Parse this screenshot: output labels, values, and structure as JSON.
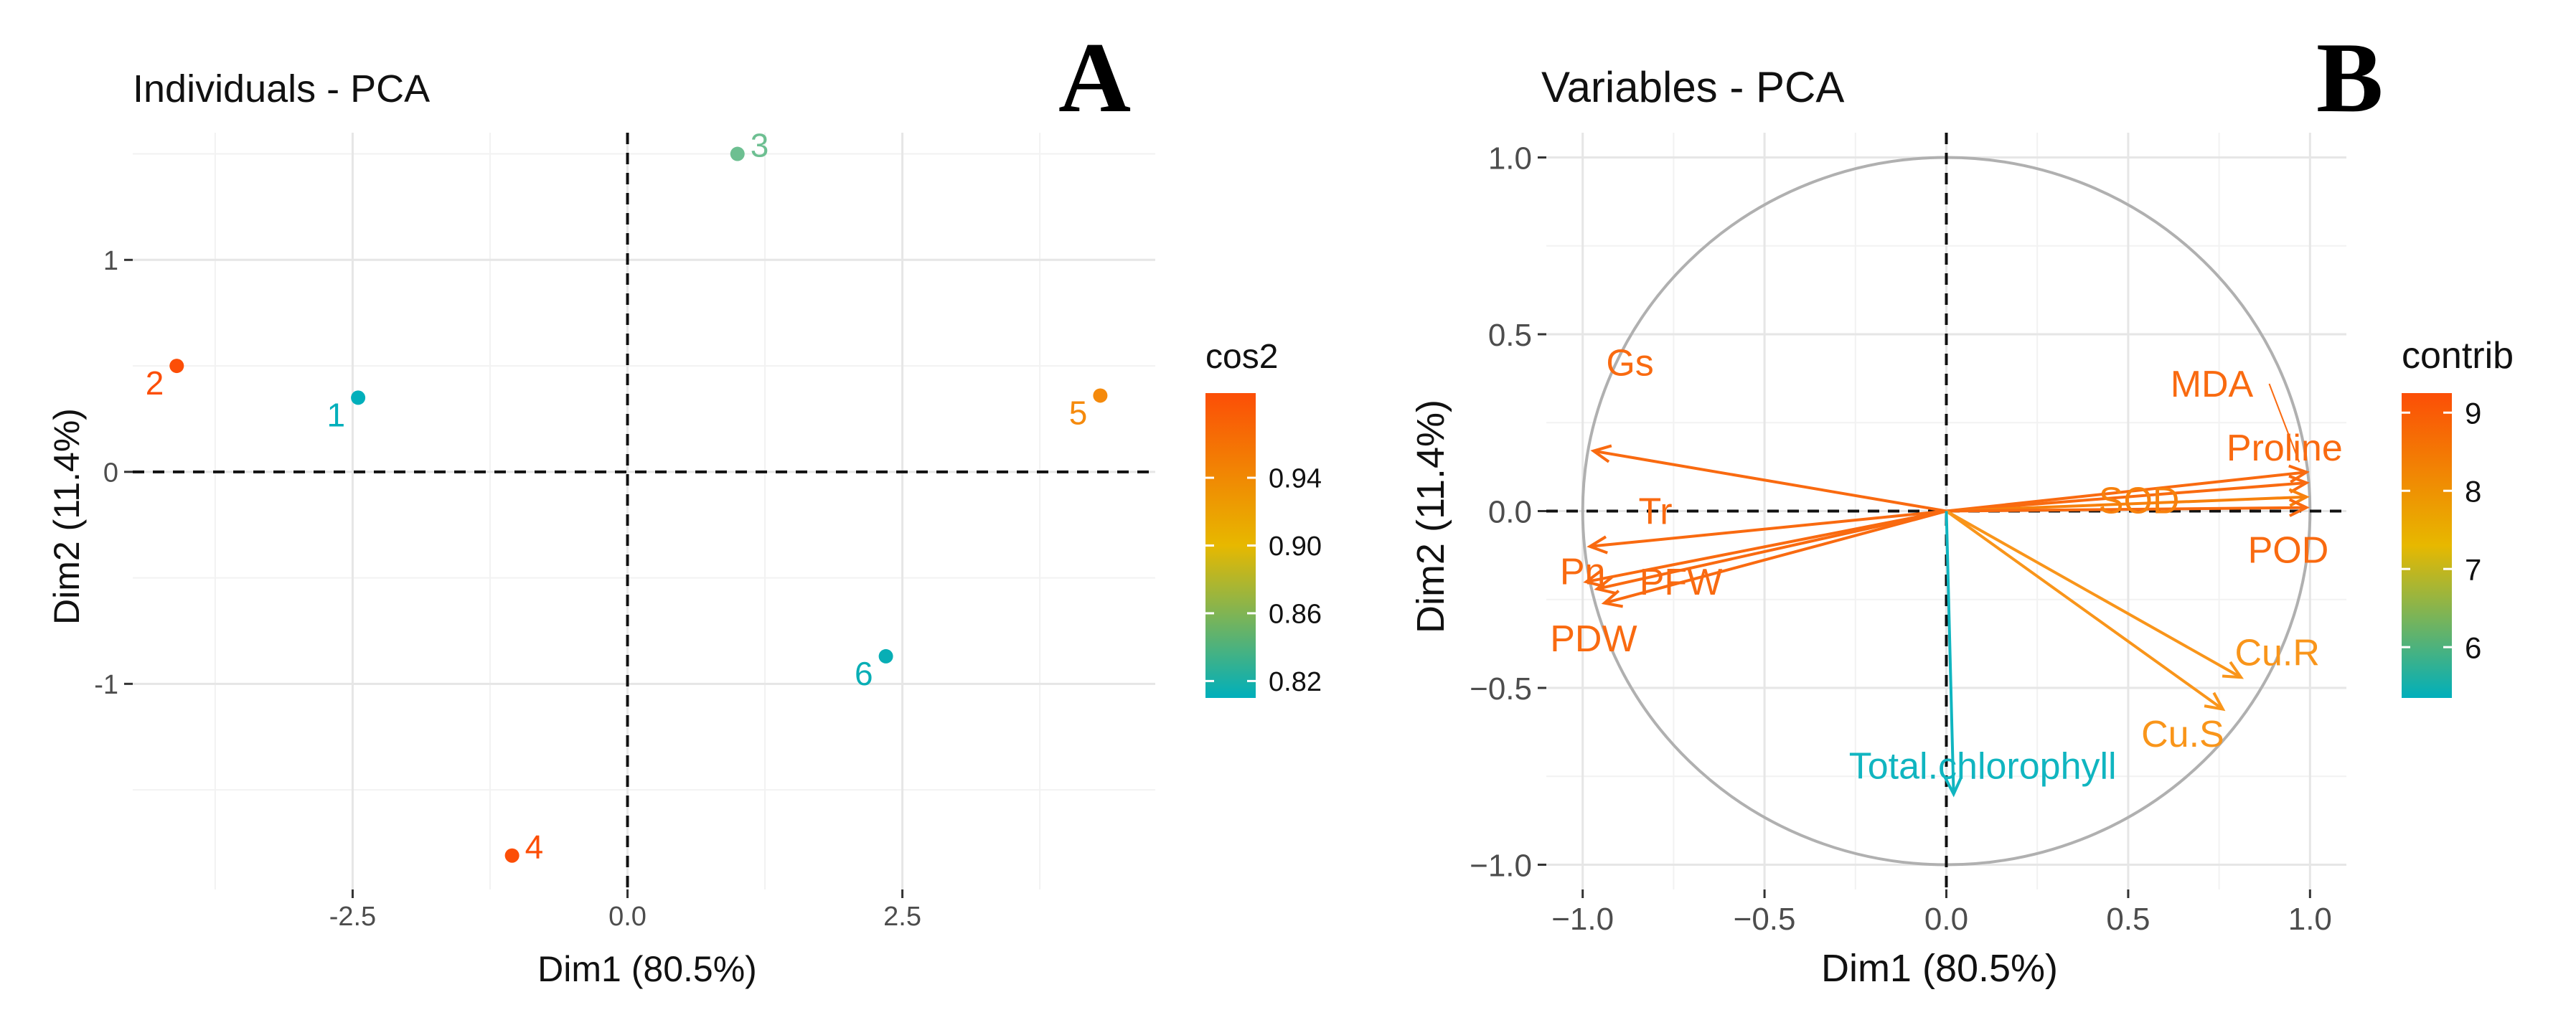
{
  "panel_letters": [
    "A",
    "B"
  ],
  "legend_titles": [
    "cos2",
    "contrib"
  ],
  "chart_data": [
    {
      "type": "scatter",
      "panel": "A",
      "title": "Individuals - PCA",
      "xlabel": "Dim1 (80.5%)",
      "ylabel": "Dim2 (11.4%)",
      "xlim": [
        -4.5,
        4.8
      ],
      "ylim": [
        -1.97,
        1.6
      ],
      "x_ticks": [
        -2.5,
        0.0,
        2.5
      ],
      "x_tick_labels": [
        "-2.5",
        "0.0",
        "2.5"
      ],
      "y_ticks": [
        -1,
        0,
        1
      ],
      "y_tick_labels": [
        "-1",
        "0",
        "1"
      ],
      "grid": true,
      "points": [
        {
          "label": "1",
          "x": -2.45,
          "y": 0.35,
          "cos2": 0.82,
          "color": "#00AFBB"
        },
        {
          "label": "2",
          "x": -4.1,
          "y": 0.5,
          "cos2": 0.99,
          "color": "#FC4E07"
        },
        {
          "label": "3",
          "x": 1.0,
          "y": 1.5,
          "cos2": 0.855,
          "color": "#6DBF91"
        },
        {
          "label": "4",
          "x": -1.05,
          "y": -1.81,
          "cos2": 0.99,
          "color": "#FC4E07"
        },
        {
          "label": "5",
          "x": 4.3,
          "y": 0.36,
          "cos2": 0.955,
          "color": "#F58A0C"
        },
        {
          "label": "6",
          "x": 2.35,
          "y": -0.87,
          "cos2": 0.82,
          "color": "#08AEB5"
        }
      ],
      "legend": {
        "title": "cos2",
        "position": "right",
        "range": [
          0.81,
          0.99
        ],
        "ticks": [
          0.82,
          0.86,
          0.9,
          0.94
        ],
        "tick_labels": [
          "0.82",
          "0.86",
          "0.90",
          "0.94"
        ],
        "colors": [
          "#00AFBB",
          "#E7B800",
          "#FC4E07"
        ]
      }
    },
    {
      "type": "scatter",
      "panel": "B",
      "title": "Variables - PCA",
      "xlabel": "Dim1 (80.5%)",
      "ylabel": "Dim2 (11.4%)",
      "xlim": [
        -1.1,
        1.1
      ],
      "ylim": [
        -1.07,
        1.07
      ],
      "x_ticks": [
        -1.0,
        -0.5,
        0.0,
        0.5,
        1.0
      ],
      "x_tick_labels": [
        "−1.0",
        "−0.5",
        "0.0",
        "0.5",
        "1.0"
      ],
      "y_ticks": [
        -1.0,
        -0.5,
        0.0,
        0.5,
        1.0
      ],
      "y_tick_labels": [
        "−1.0",
        "−0.5",
        "0.0",
        "0.5",
        "1.0"
      ],
      "grid": true,
      "correlation_circle": true,
      "arrows": [
        {
          "name": "Gs",
          "x": -0.97,
          "y": 0.17,
          "label_dx": 0.1,
          "label_dy": 0.25,
          "color": "#F96A10"
        },
        {
          "name": "Tr",
          "x": -0.98,
          "y": -0.1,
          "label_dx": 0.18,
          "label_dy": 0.1,
          "color": "#F96A10"
        },
        {
          "name": "Pn",
          "x": -0.99,
          "y": -0.2,
          "label_dx": -0.01,
          "label_dy": 0.03,
          "color": "#F96A10"
        },
        {
          "name": "PFW",
          "x": -0.96,
          "y": -0.22,
          "label_dx": 0.23,
          "label_dy": 0.02,
          "color": "#F96A10"
        },
        {
          "name": "PDW",
          "x": -0.94,
          "y": -0.26,
          "label_dx": -0.03,
          "label_dy": -0.1,
          "color": "#F96A10"
        },
        {
          "name": "MDA",
          "x": 0.99,
          "y": 0.11,
          "label_dx": -0.26,
          "label_dy": 0.25,
          "color": "#F96A10"
        },
        {
          "name": "Proline",
          "x": 0.99,
          "y": 0.08,
          "label_dx": -0.06,
          "label_dy": 0.1,
          "color": "#F96A10"
        },
        {
          "name": "SOD",
          "x": 0.99,
          "y": 0.04,
          "label_dx": -0.46,
          "label_dy": -0.01,
          "color": "#F7810C"
        },
        {
          "name": "POD",
          "x": 0.99,
          "y": 0.01,
          "label_dx": -0.05,
          "label_dy": -0.12,
          "color": "#F96A10"
        },
        {
          "name": "Cu.R",
          "x": 0.81,
          "y": -0.47,
          "label_dx": 0.1,
          "label_dy": 0.07,
          "color": "#F9951A"
        },
        {
          "name": "Cu.S",
          "x": 0.76,
          "y": -0.56,
          "label_dx": -0.11,
          "label_dy": -0.07,
          "color": "#F9951A"
        },
        {
          "name": "Total.chlorophyll",
          "x": 0.02,
          "y": -0.8,
          "label_dx": 0.08,
          "label_dy": 0.08,
          "color": "#10B5C0"
        }
      ],
      "legend": {
        "title": "contrib",
        "position": "right",
        "range": [
          5.35,
          9.25
        ],
        "ticks": [
          6,
          7,
          8,
          9
        ],
        "tick_labels": [
          "6",
          "7",
          "8",
          "9"
        ],
        "colors": [
          "#00AFBB",
          "#E7B800",
          "#FC4E07"
        ]
      }
    }
  ]
}
